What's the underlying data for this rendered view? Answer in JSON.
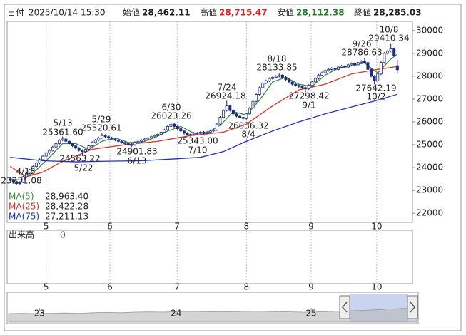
{
  "header": {
    "date_label": "日付",
    "datetime": "2025/10/14 15:30",
    "fields": [
      {
        "label": "始値",
        "value": "28,462.11"
      },
      {
        "label": "高値",
        "value": "28,715.47"
      },
      {
        "label": "安値",
        "value": "28,112.38"
      },
      {
        "label": "終値",
        "value": "28,285.03"
      }
    ]
  },
  "volume": {
    "title": "出来高",
    "tick": "0"
  },
  "chart_data": [
    {
      "type": "candlestick",
      "up_color": "#ffffff",
      "down_color": "#1c2a80",
      "outline": "#1c2a80",
      "xlim": [
        -0.9,
        122.6
      ],
      "xticks": [
        {
          "value": 11,
          "label": "5"
        },
        {
          "value": 30.4,
          "label": "6"
        },
        {
          "value": 50.9,
          "label": "7"
        },
        {
          "value": 72,
          "label": "8"
        },
        {
          "value": 91.7,
          "label": "9"
        },
        {
          "value": 111.7,
          "label": "10"
        }
      ],
      "ylim": [
        21600,
        30400
      ],
      "yticks": [
        30000,
        29000,
        28000,
        27000,
        26000,
        25000,
        24000,
        23000,
        22000
      ],
      "grid": "x",
      "ohlc": [
        [
          23500,
          23560,
          23400,
          23450
        ],
        [
          23450,
          23500,
          23330,
          23380
        ],
        [
          23380,
          23420,
          23260,
          23300
        ],
        [
          23300,
          23400,
          23231.08,
          23350
        ],
        [
          23350,
          23650,
          23320,
          23600
        ],
        [
          23600,
          23800,
          23560,
          23750
        ],
        [
          23750,
          23950,
          23700,
          23900
        ],
        [
          23900,
          24100,
          23850,
          24050
        ],
        [
          24050,
          24250,
          24000,
          24200
        ],
        [
          24200,
          24400,
          24150,
          24350
        ],
        [
          24350,
          24560,
          24300,
          24500
        ],
        [
          24500,
          24700,
          24450,
          24650
        ],
        [
          24650,
          24800,
          24580,
          24750
        ],
        [
          24750,
          24950,
          24700,
          24900
        ],
        [
          24900,
          25100,
          24850,
          25050
        ],
        [
          25050,
          25250,
          25000,
          25200
        ],
        [
          25200,
          25361.6,
          25150,
          25250
        ],
        [
          25250,
          25300,
          25100,
          25150
        ],
        [
          25150,
          25200,
          25000,
          25050
        ],
        [
          25050,
          25100,
          24900,
          24950
        ],
        [
          24950,
          25000,
          24800,
          24850
        ],
        [
          24850,
          24900,
          24700,
          24750
        ],
        [
          24750,
          24800,
          24563.22,
          24700
        ],
        [
          24700,
          24850,
          24650,
          24800
        ],
        [
          24800,
          25000,
          24750,
          24950
        ],
        [
          24950,
          25150,
          24900,
          25100
        ],
        [
          25100,
          25250,
          25050,
          25200
        ],
        [
          25200,
          25350,
          25150,
          25300
        ],
        [
          25300,
          25520.61,
          25250,
          25400
        ],
        [
          25400,
          25450,
          25300,
          25350
        ],
        [
          25350,
          25400,
          25250,
          25300
        ],
        [
          25300,
          25350,
          25200,
          25250
        ],
        [
          25250,
          25300,
          25150,
          25200
        ],
        [
          25200,
          25250,
          25100,
          25150
        ],
        [
          25150,
          25200,
          25050,
          25100
        ],
        [
          25100,
          25150,
          25000,
          25050
        ],
        [
          25050,
          25100,
          24950,
          25000
        ],
        [
          25000,
          25080,
          24901.83,
          25000
        ],
        [
          25000,
          25150,
          24950,
          25100
        ],
        [
          25100,
          25200,
          25050,
          25150
        ],
        [
          25150,
          25250,
          25100,
          25200
        ],
        [
          25200,
          25300,
          25150,
          25250
        ],
        [
          25250,
          25350,
          25200,
          25300
        ],
        [
          25300,
          25400,
          25250,
          25350
        ],
        [
          25350,
          25450,
          25300,
          25400
        ],
        [
          25400,
          25500,
          25350,
          25450
        ],
        [
          25450,
          25600,
          25400,
          25550
        ],
        [
          25550,
          25700,
          25500,
          25650
        ],
        [
          25650,
          25850,
          25600,
          25800
        ],
        [
          25800,
          26023.26,
          25750,
          25900
        ],
        [
          25900,
          25950,
          25750,
          25800
        ],
        [
          25800,
          25850,
          25650,
          25700
        ],
        [
          25700,
          25750,
          25550,
          25600
        ],
        [
          25600,
          25650,
          25450,
          25500
        ],
        [
          25500,
          25550,
          25400,
          25450
        ],
        [
          25450,
          25520,
          25343,
          25450
        ],
        [
          25450,
          25560,
          25400,
          25500
        ],
        [
          25500,
          25560,
          25440,
          25500
        ],
        [
          25500,
          25600,
          25450,
          25550
        ],
        [
          25550,
          25600,
          25450,
          25500
        ],
        [
          25500,
          25600,
          25450,
          25550
        ],
        [
          25550,
          25650,
          25500,
          25600
        ],
        [
          25600,
          25700,
          25550,
          25650
        ],
        [
          25650,
          25950,
          25600,
          25900
        ],
        [
          25900,
          26250,
          25850,
          26200
        ],
        [
          26200,
          26550,
          26150,
          26500
        ],
        [
          26500,
          26924.18,
          26450,
          26700
        ],
        [
          26700,
          26750,
          26450,
          26500
        ],
        [
          26500,
          26550,
          26300,
          26350
        ],
        [
          26350,
          26400,
          26200,
          26250
        ],
        [
          26250,
          26300,
          26150,
          26200
        ],
        [
          26200,
          26250,
          26036.32,
          26150
        ],
        [
          26150,
          26400,
          26100,
          26350
        ],
        [
          26350,
          26650,
          26300,
          26600
        ],
        [
          26600,
          26950,
          26550,
          26900
        ],
        [
          26900,
          27250,
          26850,
          27200
        ],
        [
          27200,
          27550,
          27150,
          27500
        ],
        [
          27500,
          27750,
          27450,
          27700
        ],
        [
          27700,
          27850,
          27650,
          27800
        ],
        [
          27800,
          27950,
          27750,
          27900
        ],
        [
          27900,
          28000,
          27850,
          27950
        ],
        [
          27950,
          28050,
          27900,
          28000
        ],
        [
          28000,
          28133.85,
          27950,
          28050
        ],
        [
          28050,
          28100,
          27900,
          27950
        ],
        [
          27950,
          28000,
          27800,
          27850
        ],
        [
          27850,
          27900,
          27700,
          27750
        ],
        [
          27750,
          27800,
          27600,
          27650
        ],
        [
          27650,
          27700,
          27550,
          27600
        ],
        [
          27600,
          27650,
          27500,
          27550
        ],
        [
          27550,
          27600,
          27450,
          27500
        ],
        [
          27500,
          27550,
          27298.42,
          27450
        ],
        [
          27450,
          27650,
          27400,
          27600
        ],
        [
          27600,
          27800,
          27550,
          27750
        ],
        [
          27750,
          27950,
          27700,
          27900
        ],
        [
          27900,
          28100,
          27850,
          28050
        ],
        [
          28050,
          28200,
          28000,
          28150
        ],
        [
          28150,
          28300,
          28100,
          28250
        ],
        [
          28250,
          28350,
          28200,
          28300
        ],
        [
          28300,
          28400,
          28250,
          28350
        ],
        [
          28350,
          28400,
          28250,
          28300
        ],
        [
          28300,
          28450,
          28250,
          28400
        ],
        [
          28400,
          28500,
          28350,
          28450
        ],
        [
          28450,
          28500,
          28350,
          28400
        ],
        [
          28400,
          28550,
          28350,
          28500
        ],
        [
          28500,
          28600,
          28450,
          28550
        ],
        [
          28550,
          28600,
          28450,
          28500
        ],
        [
          28500,
          28650,
          28450,
          28600
        ],
        [
          28600,
          28700,
          28550,
          28650
        ],
        [
          28650,
          28786.63,
          28550,
          28600
        ],
        [
          28600,
          28650,
          28250,
          28300
        ],
        [
          28300,
          28350,
          27950,
          28000
        ],
        [
          28000,
          28050,
          27642.19,
          27800
        ],
        [
          27800,
          28150,
          27750,
          28100
        ],
        [
          28100,
          28650,
          28050,
          28600
        ],
        [
          28600,
          29050,
          28550,
          29000
        ],
        [
          29000,
          29150,
          28950,
          29100
        ],
        [
          29100,
          29410.34,
          29050,
          29200
        ],
        [
          29200,
          29250,
          28850,
          28900
        ],
        [
          28462.11,
          28715.47,
          28112.38,
          28285.03
        ]
      ],
      "series": [
        {
          "name": "MA(5)",
          "color": "#3c8c3c",
          "value_label": "28,963.40",
          "x": [
            0,
            4,
            8,
            12,
            16,
            20,
            24,
            28,
            32,
            36,
            40,
            44,
            48,
            52,
            56,
            60,
            64,
            68,
            72,
            76,
            80,
            84,
            88,
            92,
            96,
            100,
            104,
            108,
            112,
            116,
            118
          ],
          "values": [
            23500,
            23450,
            23900,
            24450,
            25050,
            25050,
            24800,
            25150,
            25300,
            25100,
            25100,
            25300,
            25600,
            25800,
            25500,
            25520,
            25850,
            26450,
            26300,
            26950,
            27750,
            27950,
            27650,
            27550,
            28050,
            28350,
            28450,
            28580,
            28150,
            28750,
            28963.4
          ]
        },
        {
          "name": "MA(25)",
          "color": "#e03020",
          "value_label": "28,422.28",
          "x": [
            0,
            5,
            10,
            15,
            25,
            35,
            45,
            55,
            65,
            72,
            80,
            88,
            96,
            104,
            112,
            118
          ],
          "values": [
            24050,
            23600,
            23800,
            24200,
            24800,
            25000,
            25150,
            25400,
            25550,
            25900,
            26700,
            27400,
            27650,
            28100,
            28300,
            28422.28
          ]
        },
        {
          "name": "MA(75)",
          "color": "#2030c0",
          "value_label": "27,211.13",
          "x": [
            0,
            10,
            20,
            30,
            40,
            50,
            58,
            65,
            72,
            80,
            88,
            96,
            104,
            112,
            118
          ],
          "values": [
            24450,
            24300,
            24250,
            24280,
            24300,
            24380,
            24450,
            24700,
            25150,
            25600,
            26000,
            26350,
            26650,
            26950,
            27211.13
          ]
        }
      ],
      "annotations": [
        {
          "date": "4/18",
          "price": "23231.08"
        },
        {
          "date": "5/13",
          "price": "25361.60"
        },
        {
          "date": "5/22",
          "price": "24563.22"
        },
        {
          "date": "5/29",
          "price": "25520.61"
        },
        {
          "date": "6/13",
          "price": "24901.83"
        },
        {
          "date": "6/30",
          "price": "26023.26"
        },
        {
          "date": "7/10",
          "price": "25343.00"
        },
        {
          "date": "7/24",
          "price": "26924.18"
        },
        {
          "date": "8/4",
          "price": "26036.32"
        },
        {
          "date": "8/18",
          "price": "28133.85"
        },
        {
          "date": "9/1",
          "price": "27298.42"
        },
        {
          "date": "9/26",
          "price": "28786.63"
        },
        {
          "date": "10/2",
          "price": "27642.19"
        },
        {
          "date": "10/8",
          "price": "29410.34"
        }
      ]
    },
    {
      "type": "area",
      "color": "#b8b8b8",
      "xlim": [
        0,
        29
      ],
      "ylim": [
        0,
        100
      ],
      "xticks": [
        {
          "value": 2.2,
          "label": "23"
        },
        {
          "value": 11.9,
          "label": "24"
        },
        {
          "value": 21.5,
          "label": "25"
        }
      ],
      "values": [
        30,
        31,
        30,
        31,
        32,
        31,
        33,
        34,
        33,
        35,
        36,
        35,
        37,
        38,
        37,
        36,
        37,
        38,
        38,
        37,
        36,
        35,
        36,
        38,
        40,
        41,
        43,
        46,
        48,
        50
      ]
    }
  ]
}
